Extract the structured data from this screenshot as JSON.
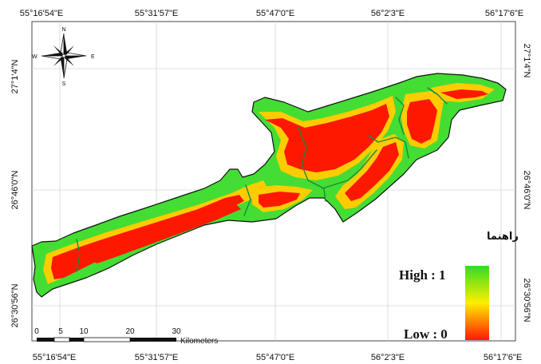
{
  "map": {
    "coords_top": [
      "55°16'54\"E",
      "55°31'57\"E",
      "55°47'0\"E",
      "56°2'3\"E",
      "56°17'6\"E"
    ],
    "coords_bottom": [
      "55°16'54\"E",
      "55°31'57\"E",
      "55°47'0\"E",
      "56°2'3\"E",
      "56°17'6\"E"
    ],
    "coords_left": [
      "27°1'4\"N",
      "26°46'0\"N",
      "26°30'56\"N"
    ],
    "coords_right": [
      "27°1'4\"N",
      "26°46'0\"N",
      "26°30'56\"N"
    ],
    "north_arrow": {
      "icon": "compass-rose-icon",
      "n": "N",
      "s": "S",
      "e": "E",
      "w": "W"
    },
    "scale_bar": {
      "ticks": [
        "0",
        "5",
        "10",
        "20",
        "30"
      ],
      "unit": "Kilometers"
    },
    "legend": {
      "title": "راهنما",
      "high_label": "High : 1",
      "low_label": "Low : 0",
      "colors": [
        "#33dd22",
        "#ffee00",
        "#ff1a00"
      ]
    },
    "zone_colors": {
      "core": "#ff1800",
      "mid": "#ffcc00",
      "edge": "#44dd33",
      "outline": "#111111"
    }
  }
}
